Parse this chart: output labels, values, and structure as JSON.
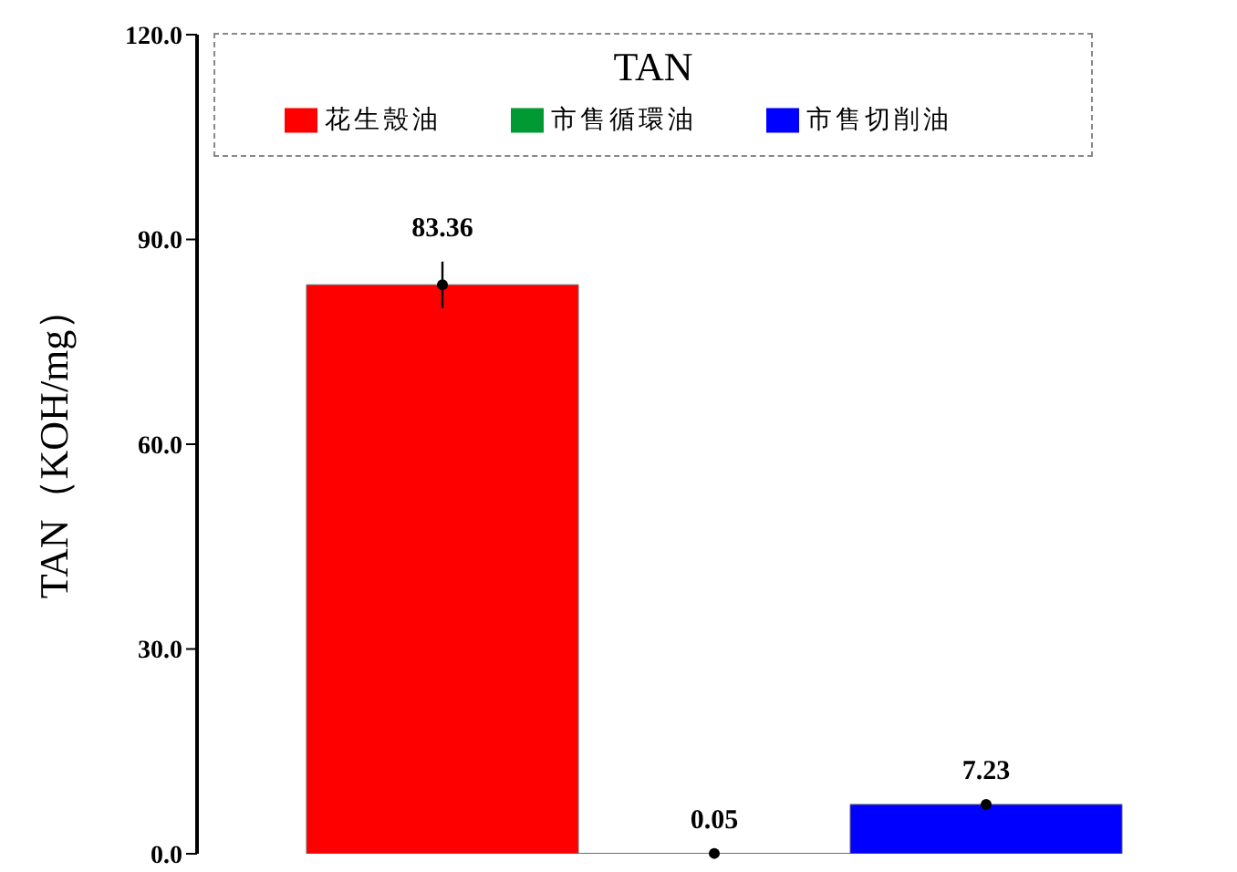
{
  "chart_data": {
    "type": "bar",
    "ylabel": "TAN（KOH/mg）",
    "legend_title": "TAN",
    "categories": [
      null
    ],
    "series": [
      {
        "name": "花生殼油",
        "color": "#ff0000",
        "values": [
          83.36
        ],
        "errors": [
          3.4
        ]
      },
      {
        "name": "市售循環油",
        "color": "#009933",
        "values": [
          0.05
        ]
      },
      {
        "name": "市售切削油",
        "color": "#0000ff",
        "values": [
          7.23
        ]
      }
    ],
    "ylim": [
      0,
      120
    ],
    "yticks": [
      {
        "value": 0,
        "label": "0.0"
      },
      {
        "value": 30,
        "label": "30.0"
      },
      {
        "value": 60,
        "label": "60.0"
      },
      {
        "value": 90,
        "label": "90.0"
      },
      {
        "value": 120,
        "label": "120.0"
      }
    ],
    "data_labels": true,
    "marker": "circle",
    "legend": "top",
    "tick_labels": "y",
    "grid": false
  }
}
